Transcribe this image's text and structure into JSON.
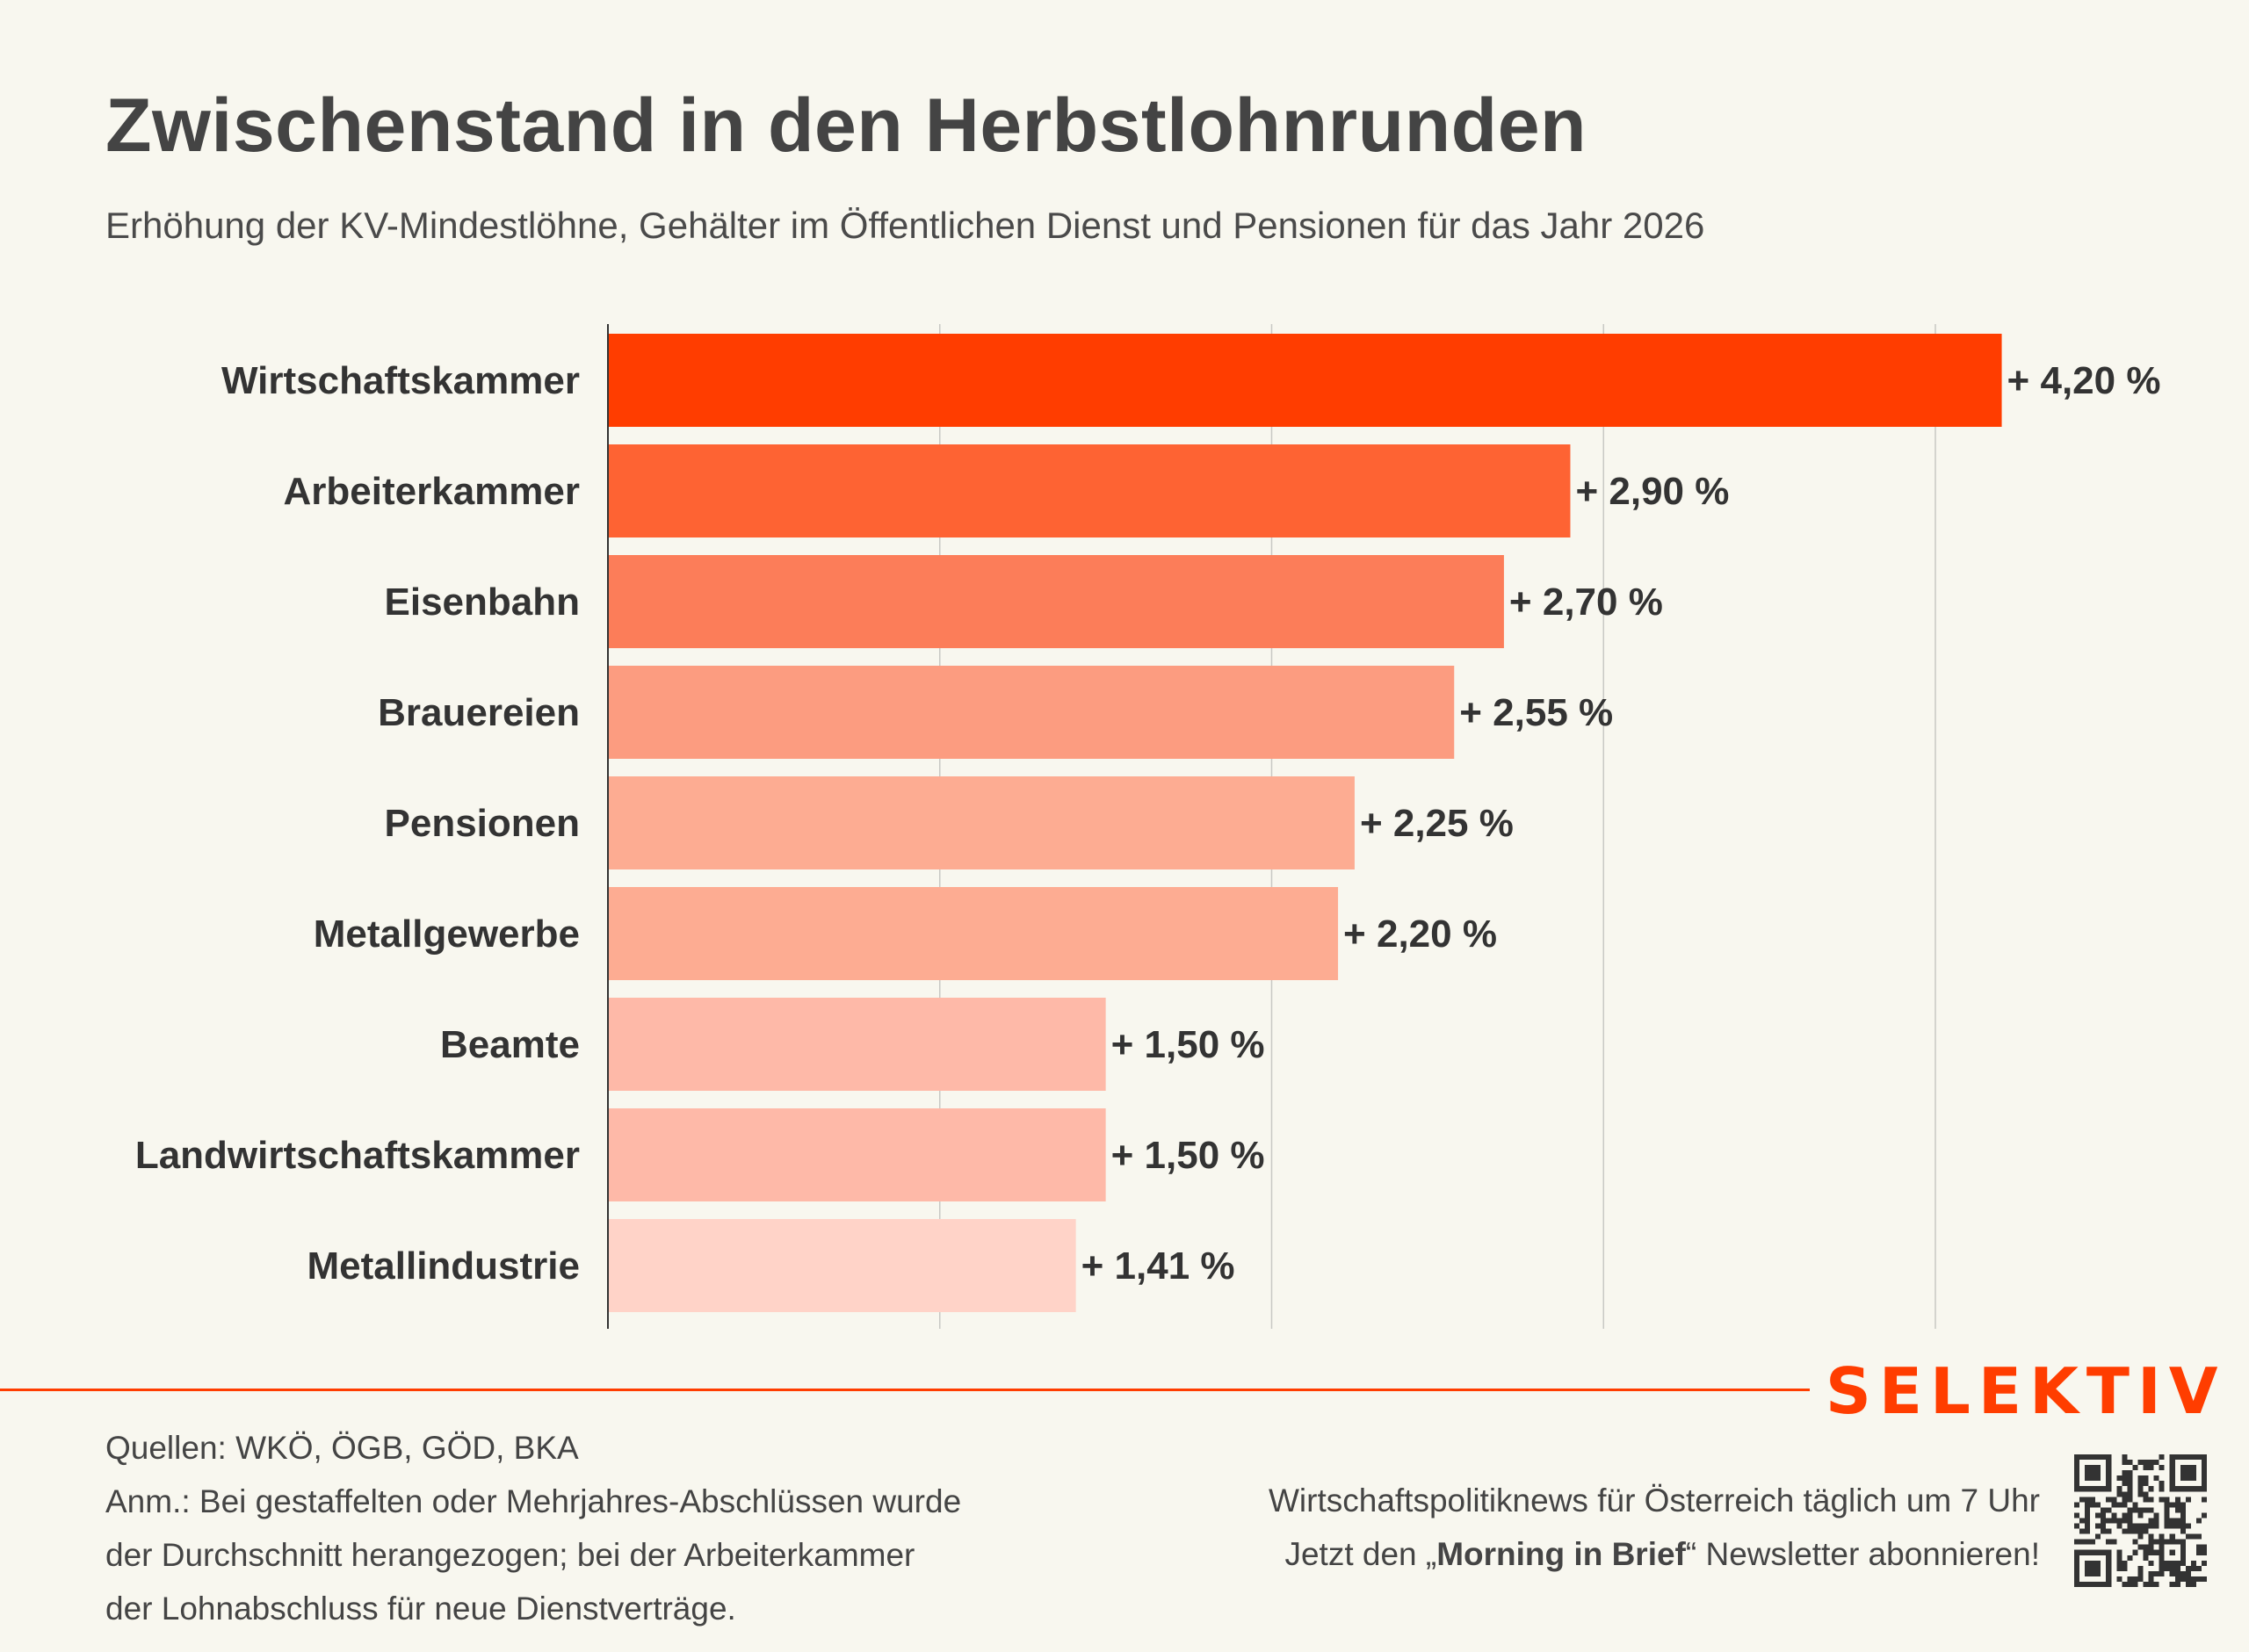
{
  "header": {
    "title": "Zwischenstand in den Herbstlohnrunden",
    "subtitle": "Erhöhung der KV-Mindestlöhne, Gehälter im Öffentlichen Dienst und Pensionen für das Jahr 2026"
  },
  "chart_data": {
    "type": "bar",
    "orientation": "horizontal",
    "title": "Zwischenstand in den Herbstlohnrunden",
    "subtitle": "Erhöhung der KV-Mindestlöhne, Gehälter im Öffentlichen Dienst und Pensionen für das Jahr 2026",
    "xlabel": "",
    "ylabel": "",
    "categories": [
      "Wirtschaftskammer",
      "Arbeiterkammer",
      "Eisenbahn",
      "Brauereien",
      "Pensionen",
      "Metallgewerbe",
      "Beamte",
      "Landwirtschaftskammer",
      "Metallindustrie"
    ],
    "values": [
      4.2,
      2.9,
      2.7,
      2.55,
      2.25,
      2.2,
      1.5,
      1.5,
      1.41
    ],
    "value_labels": [
      "+ 4,20 %",
      "+ 2,90 %",
      "+ 2,70 %",
      "+ 2,55 %",
      "+ 2,25 %",
      "+ 2,20 %",
      "+ 1,50 %",
      "+ 1,50 %",
      "+ 1,41 %"
    ],
    "colors": [
      "#FF3D00",
      "#FE6333",
      "#FC7D59",
      "#FC9C80",
      "#FDAC92",
      "#FDAC92",
      "#FEB9A8",
      "#FEB9A8",
      "#FFD3C8"
    ],
    "xlim": [
      0,
      4.5
    ],
    "gridlines": [
      1,
      2,
      3,
      4
    ],
    "grid": true,
    "tick_labels_shown": false,
    "unit": "%"
  },
  "footer": {
    "sources": "Quellen: WKÖ, ÖGB, GÖD, BKA",
    "note_lines": [
      "Anm.: Bei gestaffelten oder Mehrjahres-Abschlüssen wurde",
      "der Durchschnitt herangezogen; bei der Arbeiterkammer",
      "der Lohnabschluss für neue Dienstverträge."
    ],
    "promo_line1": "Wirtschaftspolitiknews für Österreich täglich um 7 Uhr",
    "promo_line2_pre": "Jetzt den „",
    "promo_line2_bold": "Morning in Brief",
    "promo_line2_post": "“ Newsletter abonnieren!"
  },
  "brand": {
    "logo": "SELEKTIV",
    "accent_color": "#FF3D00",
    "qr_icon": "qr-code-icon"
  }
}
